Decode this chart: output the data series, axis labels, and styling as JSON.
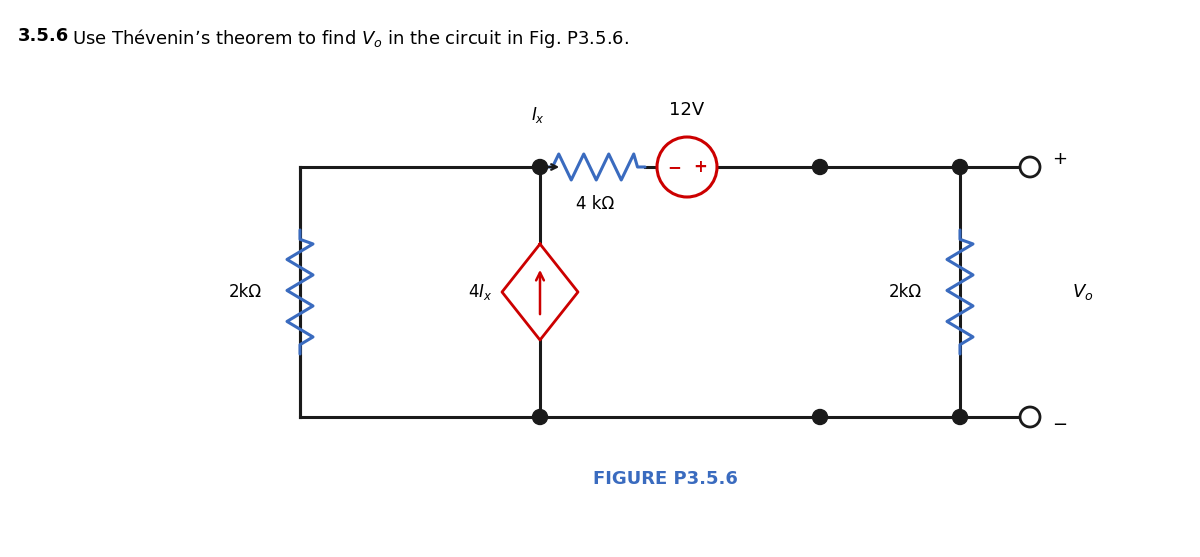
{
  "title_bold": "3.5.6",
  "title_normal": "  Use Thévenin’s theorem to find V₀ in the circuit in Fig. P3.5.6.",
  "figure_label": "FIGURE P3.5.6",
  "bg_color": "#ffffff",
  "wire_color": "#1a1a1a",
  "resistor_color_blue": "#3a6bbf",
  "voltage_source_color": "#cc0000",
  "current_source_color": "#cc0000",
  "label_2kohm_left": "2kΩ",
  "label_4kohm": "4 kΩ",
  "label_12V": "12V",
  "label_Ix": "$I_x$",
  "label_4Ix": "$4I_x$",
  "label_2kohm_right": "2kΩ",
  "label_Vo": "$V_o$",
  "node_color": "#1a1a1a",
  "open_terminal_color": "#1a1a1a",
  "fig_width": 12.0,
  "fig_height": 5.57,
  "dpi": 100,
  "xL": 3.0,
  "xM": 5.4,
  "xR": 8.2,
  "xFR": 9.6,
  "xTerm": 10.3,
  "yTop": 3.9,
  "yBot": 1.4
}
